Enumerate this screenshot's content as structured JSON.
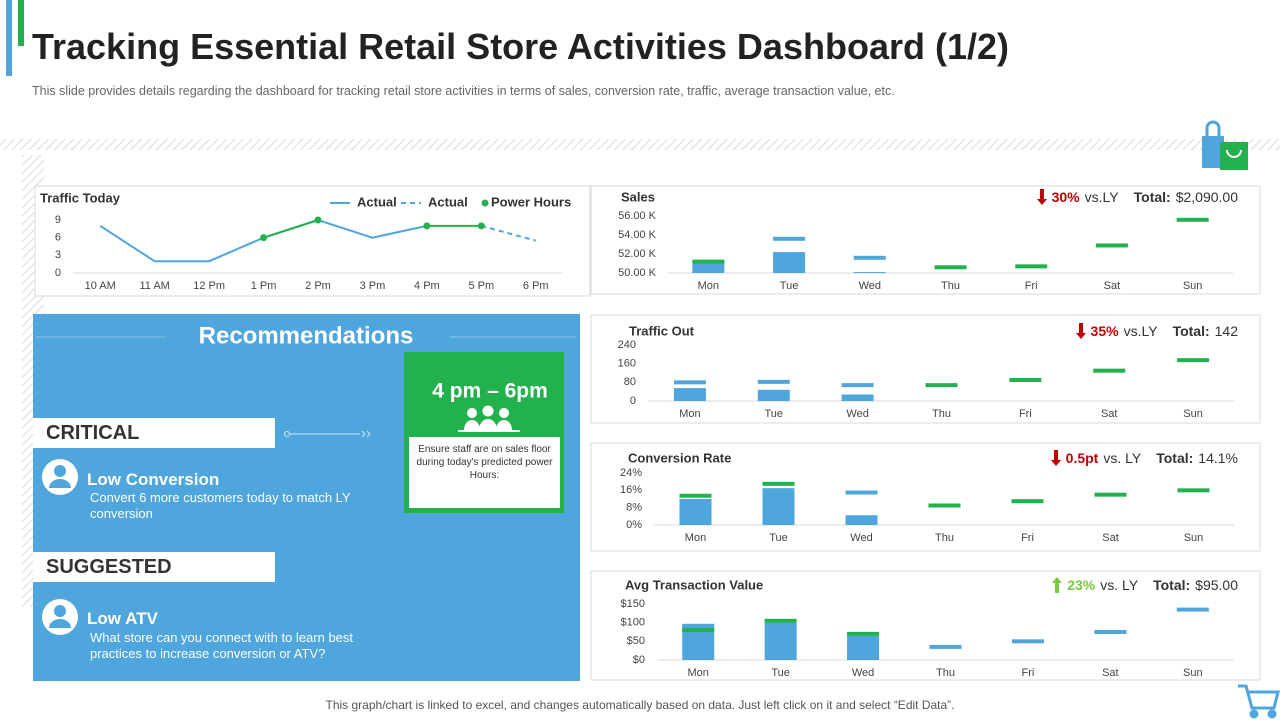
{
  "header": {
    "title": "Tracking Essential Retail Store Activities Dashboard (1/2)",
    "subtitle": "This slide provides  details regarding the dashboard for tracking retail store activities in terms of sales, conversion  rate, traffic, average  transaction value,  etc."
  },
  "recommendations": {
    "title": "Recommendations",
    "power_hours": "4 pm – 6pm",
    "note": "Ensure staff are on sales floor  during today's predicted power Hours:",
    "sections": [
      {
        "level": "CRITICAL",
        "heading": "Low Conversion",
        "text": "Convert  6 more customers today to match LY conversion"
      },
      {
        "level": "SUGGESTED",
        "heading": "Low ATV",
        "text": "What store can you connect with to learn best practices to increase conversion  or ATV?"
      }
    ]
  },
  "footer": "This graph/chart is linked to excel,  and changes automatically based on data. Just left click on it and select “Edit Data”.",
  "chart_data": [
    {
      "type": "line",
      "title": "Traffic Today",
      "categories": [
        "10 AM",
        "11 AM",
        "12 Pm",
        "1 Pm",
        "2 Pm",
        "3  Pm",
        "4  Pm",
        "5  Pm",
        "6  Pm"
      ],
      "series": [
        {
          "name": "Actual",
          "color": "#4ea6dc",
          "values": [
            8,
            2,
            2,
            6,
            9,
            6,
            8,
            null,
            null
          ]
        },
        {
          "name": "Actual",
          "color": "#4ea6dc",
          "dashed": true,
          "values": [
            null,
            null,
            null,
            null,
            null,
            null,
            null,
            8,
            5.5
          ]
        },
        {
          "name": "Power Hours",
          "color": "#22b14c",
          "markers": true,
          "values": [
            null,
            null,
            null,
            6,
            9,
            null,
            8,
            8,
            null
          ]
        }
      ],
      "ylim": [
        0,
        9
      ],
      "yticks": [
        0,
        3,
        6,
        9
      ]
    },
    {
      "type": "bar",
      "title": "Sales",
      "kpi": {
        "trend": "down",
        "change": "30%",
        "compare": "vs.LY",
        "total_label": "Total:",
        "total": "$2,090.00"
      },
      "categories": [
        "Mon",
        "Tue",
        "Wed",
        "Thu",
        "Fri",
        "Sat",
        "Sun"
      ],
      "series": [
        {
          "color": "#4ea6dc",
          "values": [
            51000,
            52200,
            50100,
            null,
            null,
            null,
            null
          ]
        },
        {
          "markers": true,
          "colors": [
            "#22b14c",
            "#4ea6dc",
            "#4ea6dc",
            "#22b14c",
            "#22b14c",
            "#22b14c",
            "#22b14c"
          ],
          "values": [
            51200,
            53600,
            51600,
            50600,
            50700,
            52900,
            55600
          ]
        }
      ],
      "ylim": [
        50000,
        56000
      ],
      "yticks": [
        {
          "value": 50000,
          "label": "50.00 K"
        },
        {
          "value": 52000,
          "label": "52.00 K"
        },
        {
          "value": 54000,
          "label": "54.00 K"
        },
        {
          "value": 56000,
          "label": "56.00 K"
        }
      ]
    },
    {
      "type": "bar",
      "title": "Traffic Out",
      "kpi": {
        "trend": "down",
        "change": "35%",
        "compare": "vs.LY",
        "total_label": "Total:",
        "total": "142"
      },
      "categories": [
        "Mon",
        "Tue",
        "Wed",
        "Thu",
        "Fri",
        "Sat",
        "Sun"
      ],
      "series": [
        {
          "color": "#4ea6dc",
          "values": [
            55,
            48,
            28,
            null,
            null,
            null,
            null
          ]
        },
        {
          "markers": true,
          "colors": [
            "#4ea6dc",
            "#4ea6dc",
            "#4ea6dc",
            "#22b14c",
            "#22b14c",
            "#22b14c",
            "#22b14c"
          ],
          "values": [
            80,
            82,
            68,
            68,
            90,
            130,
            175
          ]
        }
      ],
      "ylim": [
        0,
        240
      ],
      "yticks": [
        0,
        80,
        160,
        240
      ]
    },
    {
      "type": "bar",
      "title": "Conversion Rate",
      "kpi": {
        "trend": "down",
        "change": "0.5pt",
        "compare": "vs. LY",
        "total_label": "Total:",
        "total": "14.1%"
      },
      "categories": [
        "Mon",
        "Tue",
        "Wed",
        "Thu",
        "Fri",
        "Sat",
        "Sun"
      ],
      "series": [
        {
          "color": "#4ea6dc",
          "values": [
            12,
            17,
            4.5,
            null,
            null,
            null,
            null
          ]
        },
        {
          "markers": true,
          "colors": [
            "#22b14c",
            "#22b14c",
            "#4ea6dc",
            "#22b14c",
            "#22b14c",
            "#22b14c",
            "#22b14c"
          ],
          "values": [
            13.5,
            19,
            15,
            9,
            11,
            14,
            16
          ]
        }
      ],
      "ylim": [
        0,
        24
      ],
      "yticks": [
        {
          "value": 0,
          "label": "0%"
        },
        {
          "value": 8,
          "label": "8%"
        },
        {
          "value": 16,
          "label": "16%"
        },
        {
          "value": 24,
          "label": "24%"
        }
      ]
    },
    {
      "type": "bar",
      "title": "Avg Transaction Value",
      "kpi": {
        "trend": "up",
        "change": "23%",
        "compare": "vs. LY",
        "total_label": "Total:",
        "total": "$95.00"
      },
      "categories": [
        "Mon",
        "Tue",
        "Wed",
        "Thu",
        "Fri",
        "Sat",
        "Sun"
      ],
      "series": [
        {
          "color": "#4ea6dc",
          "values": [
            97,
            100,
            65,
            null,
            null,
            null,
            null
          ]
        },
        {
          "markers": true,
          "colors": [
            "#22b14c",
            "#22b14c",
            "#22b14c",
            "#4ea6dc",
            "#4ea6dc",
            "#4ea6dc",
            "#4ea6dc"
          ],
          "values": [
            80,
            105,
            70,
            35,
            50,
            75,
            135
          ]
        }
      ],
      "ylim": [
        0,
        150
      ],
      "yticks": [
        {
          "value": 0,
          "label": "$0"
        },
        {
          "value": 50,
          "label": "$50"
        },
        {
          "value": 100,
          "label": "$100"
        },
        {
          "value": 150,
          "label": "$150"
        }
      ]
    }
  ]
}
